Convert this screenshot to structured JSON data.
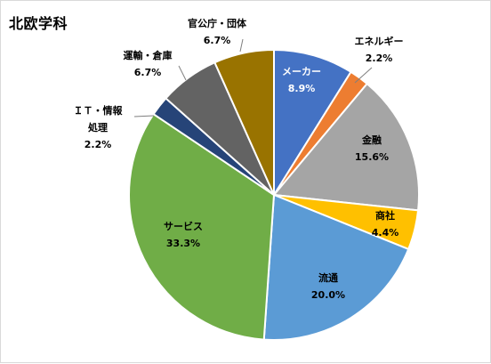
{
  "chart_data": {
    "type": "pie",
    "title": "北欧学科",
    "legend": "none",
    "slices": [
      {
        "label": "メーカー",
        "value": 8.9,
        "display": "8.9%",
        "color": "#4472c4",
        "label_color": "#ffffff"
      },
      {
        "label": "エネルギー",
        "value": 2.2,
        "display": "2.2%",
        "color": "#ed7d31",
        "label_color": "#000000"
      },
      {
        "label": "金融",
        "value": 15.6,
        "display": "15.6%",
        "color": "#a5a5a5",
        "label_color": "#000000"
      },
      {
        "label": "商社",
        "value": 4.4,
        "display": "4.4%",
        "color": "#ffc000",
        "label_color": "#000000"
      },
      {
        "label": "流通",
        "value": 20.0,
        "display": "20.0%",
        "color": "#5b9bd5",
        "label_color": "#000000"
      },
      {
        "label": "サービス",
        "value": 33.3,
        "display": "33.3%",
        "color": "#70ad47",
        "label_color": "#000000"
      },
      {
        "label": "ＩＴ・情報処理",
        "value": 2.2,
        "display": "2.2%",
        "color": "#264478",
        "label_color": "#000000"
      },
      {
        "label": "運輸・倉庫",
        "value": 6.7,
        "display": "6.7%",
        "color": "#636363",
        "label_color": "#000000"
      },
      {
        "label": "官公庁・団体",
        "value": 6.7,
        "display": "6.7%",
        "color": "#997300",
        "label_color": "#000000"
      }
    ]
  }
}
